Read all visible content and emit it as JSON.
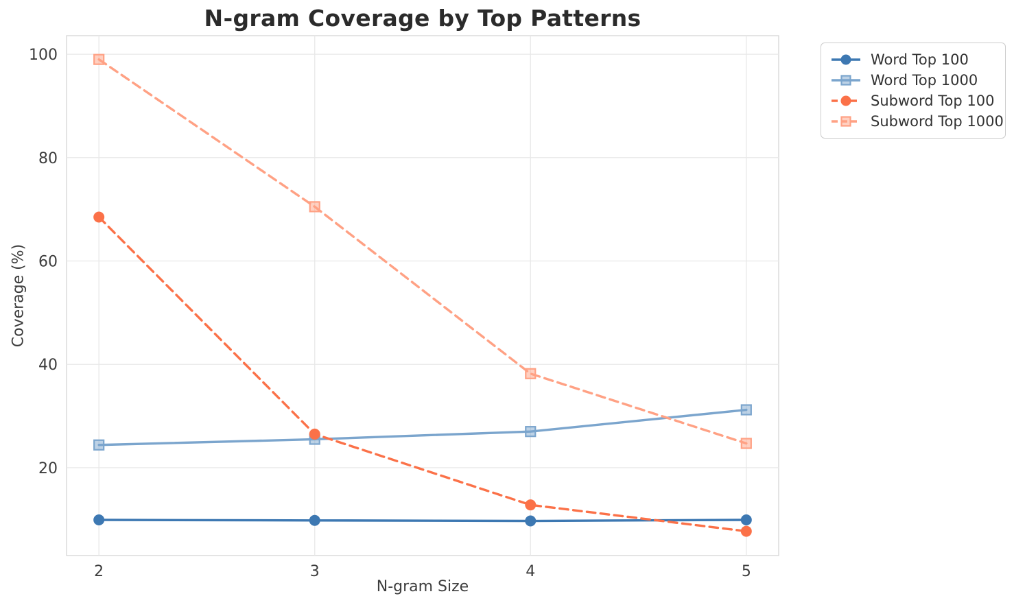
{
  "chart_data": {
    "type": "line",
    "title": "N-gram Coverage by Top Patterns",
    "xlabel": "N-gram Size",
    "ylabel": "Coverage (%)",
    "x": [
      2,
      3,
      4,
      5
    ],
    "x_tick_labels": [
      "2",
      "3",
      "4",
      "5"
    ],
    "y_ticks": [
      20,
      40,
      60,
      80,
      100
    ],
    "y_tick_labels": [
      "20",
      "40",
      "60",
      "80",
      "100"
    ],
    "xlim": [
      1.85,
      5.15
    ],
    "ylim": [
      3.0,
      103.6
    ],
    "grid": true,
    "legend_position": "outside-upper-right",
    "series": [
      {
        "name": "Word Top 100",
        "color": "#3d78b2",
        "marker": "circle",
        "linestyle": "solid",
        "values": [
          9.9,
          9.8,
          9.7,
          9.9
        ]
      },
      {
        "name": "Word Top 1000",
        "color": "#7ba5cd",
        "marker": "square",
        "linestyle": "solid",
        "values": [
          24.4,
          25.5,
          27.0,
          31.2
        ]
      },
      {
        "name": "Subword Top 100",
        "color": "#fb7148",
        "marker": "circle",
        "linestyle": "dashed",
        "values": [
          68.5,
          26.5,
          12.8,
          7.7
        ]
      },
      {
        "name": "Subword Top 1000",
        "color": "#ffa184",
        "marker": "square",
        "linestyle": "dashed",
        "values": [
          99.0,
          70.5,
          38.2,
          24.7
        ]
      }
    ]
  },
  "colors": {
    "figure_background": "#ffffff",
    "plot_background": "#ffffff",
    "grid": "#e8e8e8",
    "spine": "#d9d9d9",
    "title_text": "#2b2b2b",
    "axis_text": "#3d3d3d",
    "legend_text": "#333333",
    "legend_border": "#cccccc"
  }
}
